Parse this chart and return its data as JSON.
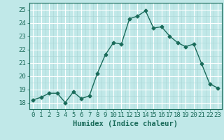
{
  "x": [
    0,
    1,
    2,
    3,
    4,
    5,
    6,
    7,
    8,
    9,
    10,
    11,
    12,
    13,
    14,
    15,
    16,
    17,
    18,
    19,
    20,
    21,
    22,
    23
  ],
  "y": [
    18.2,
    18.4,
    18.7,
    18.7,
    18.0,
    18.8,
    18.3,
    18.5,
    20.2,
    21.6,
    22.5,
    22.4,
    24.3,
    24.5,
    24.9,
    23.6,
    23.7,
    23.0,
    22.5,
    22.2,
    22.4,
    20.9,
    19.4,
    19.1
  ],
  "line_color": "#1a6b5a",
  "bg_color": "#c0e8e8",
  "grid_major_color": "#ffffff",
  "grid_minor_color": "#aad4d4",
  "xlabel": "Humidex (Indice chaleur)",
  "xlim": [
    -0.5,
    23.5
  ],
  "ylim": [
    17.5,
    25.5
  ],
  "yticks": [
    18,
    19,
    20,
    21,
    22,
    23,
    24,
    25
  ],
  "xticks": [
    0,
    1,
    2,
    3,
    4,
    5,
    6,
    7,
    8,
    9,
    10,
    11,
    12,
    13,
    14,
    15,
    16,
    17,
    18,
    19,
    20,
    21,
    22,
    23
  ],
  "marker": "D",
  "marker_size": 2.5,
  "line_width": 1.0,
  "xlabel_fontsize": 7.5,
  "tick_fontsize": 6.5
}
